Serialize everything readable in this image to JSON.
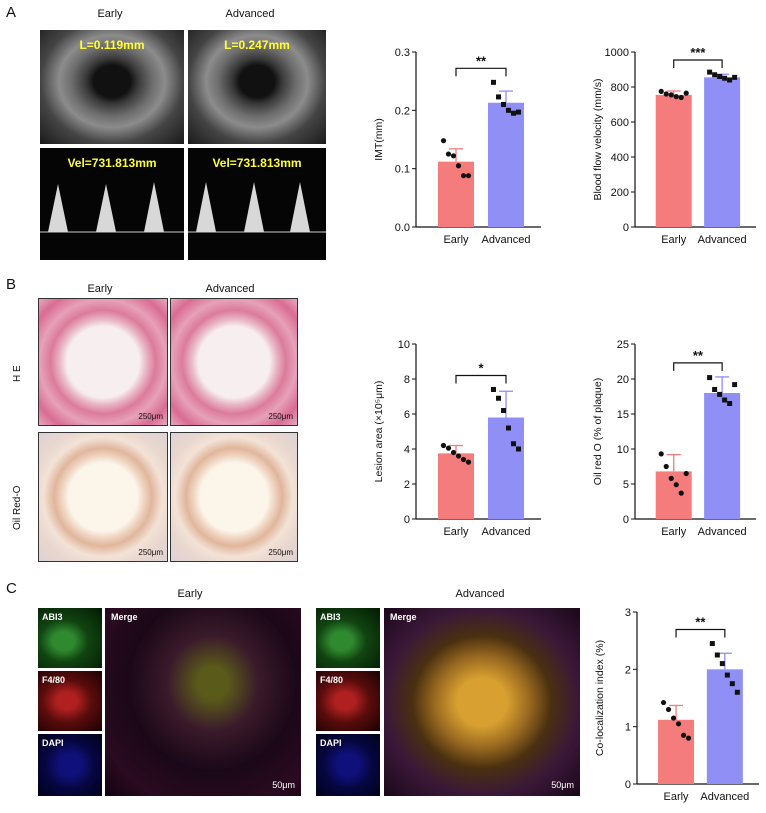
{
  "panels": {
    "A": {
      "label": "A",
      "col_early": "Early",
      "col_advanced": "Advanced",
      "us_early_top": "L=0.119mm",
      "us_adv_top": "L=0.247mm",
      "us_early_bot": "Vel=731.813mm",
      "us_adv_bot": "Vel=731.813mm"
    },
    "B": {
      "label": "B",
      "col_early": "Early",
      "col_advanced": "Advanced",
      "row_he": "H E",
      "row_oil": "Oil Red-O",
      "scale": "250μm"
    },
    "C": {
      "label": "C",
      "early_title": "Early",
      "adv_title": "Advanced",
      "ch1": "ABI3",
      "ch2": "F4/80",
      "ch3": "DAPI",
      "merge": "Merge",
      "scale": "50μm"
    }
  },
  "colors": {
    "early": "#f47c7c",
    "advanced": "#8f8ff5"
  },
  "chart_data": [
    {
      "id": "imt",
      "type": "bar",
      "categories": [
        "Early",
        "Advanced"
      ],
      "values": [
        0.112,
        0.213
      ],
      "errors": [
        0.022,
        0.02
      ],
      "points": [
        [
          0.148,
          0.125,
          0.122,
          0.105,
          0.088,
          0.088
        ],
        [
          0.248,
          0.223,
          0.21,
          0.2,
          0.195,
          0.197
        ]
      ],
      "ylabel": "IMT(mm)",
      "ylim": [
        0,
        0.3
      ],
      "yticks": [
        "0.0",
        "0.1",
        "0.2",
        "0.3"
      ],
      "significance": "**"
    },
    {
      "id": "bfv",
      "type": "bar",
      "categories": [
        "Early",
        "Advanced"
      ],
      "values": [
        755,
        855
      ],
      "errors": [
        22,
        18
      ],
      "points": [
        [
          775,
          760,
          755,
          745,
          740,
          765
        ],
        [
          885,
          870,
          860,
          850,
          840,
          855
        ]
      ],
      "ylabel": "Blood flow velocity (mm/s)",
      "ylim": [
        0,
        1000
      ],
      "yticks": [
        "0",
        "200",
        "400",
        "600",
        "800",
        "1000"
      ],
      "significance": "***"
    },
    {
      "id": "lesion",
      "type": "bar",
      "categories": [
        "Early",
        "Advanced"
      ],
      "values": [
        3.75,
        5.8
      ],
      "errors": [
        0.45,
        1.5
      ],
      "points": [
        [
          4.2,
          4.05,
          3.8,
          3.6,
          3.4,
          3.25
        ],
        [
          7.4,
          6.9,
          6.2,
          5.2,
          4.3,
          4.0
        ]
      ],
      "ylabel": "Lesion area (×10⁵μm)",
      "ylim": [
        0,
        10
      ],
      "yticks": [
        "0",
        "2",
        "4",
        "6",
        "8",
        "10"
      ],
      "significance": "*"
    },
    {
      "id": "oilred",
      "type": "bar",
      "categories": [
        "Early",
        "Advanced"
      ],
      "values": [
        6.8,
        18.0
      ],
      "errors": [
        2.4,
        2.3
      ],
      "points": [
        [
          9.3,
          7.5,
          5.8,
          4.9,
          3.7,
          6.5
        ],
        [
          20.2,
          18.5,
          17.8,
          17.0,
          16.5,
          19.2
        ]
      ],
      "ylabel": "Oil red O (% of plaque)",
      "ylim": [
        0,
        25
      ],
      "yticks": [
        "0",
        "5",
        "10",
        "15",
        "20",
        "25"
      ],
      "significance": "**"
    },
    {
      "id": "coloc",
      "type": "bar",
      "categories": [
        "Early",
        "Advanced"
      ],
      "values": [
        1.12,
        2.0
      ],
      "errors": [
        0.25,
        0.28
      ],
      "points": [
        [
          1.42,
          1.3,
          1.15,
          1.05,
          0.85,
          0.8
        ],
        [
          2.45,
          2.25,
          2.1,
          1.9,
          1.75,
          1.6
        ]
      ],
      "ylabel": "Co-localization index (%)",
      "ylim": [
        0,
        3
      ],
      "yticks": [
        "0",
        "1",
        "2",
        "3"
      ],
      "significance": "**"
    }
  ]
}
